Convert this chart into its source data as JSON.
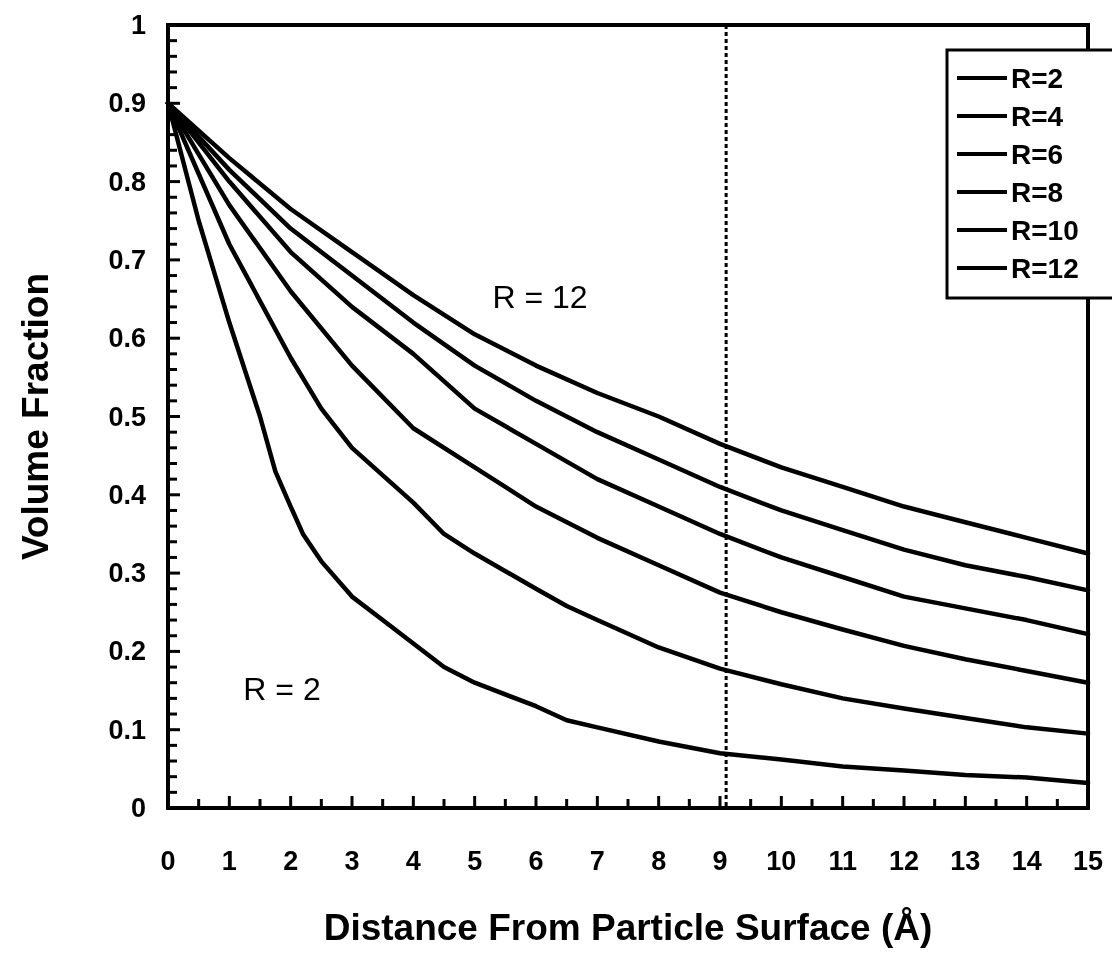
{
  "chart_data": {
    "type": "line",
    "xlabel": "Distance From Particle Surface (Å)",
    "ylabel": "Volume Fraction",
    "xlim": [
      0,
      15
    ],
    "ylim": [
      0,
      1
    ],
    "xticks": [
      0,
      {
        "value": 0.5,
        "label": null
      },
      1,
      {
        "value": 1.5,
        "label": null
      },
      2,
      {
        "value": 2.5,
        "label": null
      },
      3,
      {
        "value": 3.5,
        "label": null
      },
      4,
      {
        "value": 4.5,
        "label": null
      },
      5,
      {
        "value": 5.5,
        "label": null
      },
      6,
      {
        "value": 6.5,
        "label": null
      },
      7,
      {
        "value": 7.5,
        "label": null
      },
      8,
      {
        "value": 8.5,
        "label": null
      },
      9,
      {
        "value": 9.5,
        "label": null
      },
      10,
      {
        "value": 10.5,
        "label": null
      },
      11,
      {
        "value": 11.5,
        "label": null
      },
      12,
      {
        "value": 12.5,
        "label": null
      },
      13,
      {
        "value": 13.5,
        "label": null
      },
      14,
      {
        "value": 14.5,
        "label": null
      },
      15
    ],
    "yticks": [
      0,
      {
        "value": 0.02,
        "label": null
      },
      {
        "value": 0.04,
        "label": null
      },
      {
        "value": 0.06,
        "label": null
      },
      {
        "value": 0.08,
        "label": null
      },
      0.1,
      {
        "value": 0.12,
        "label": null
      },
      {
        "value": 0.14,
        "label": null
      },
      {
        "value": 0.16,
        "label": null
      },
      {
        "value": 0.18,
        "label": null
      },
      0.2,
      {
        "value": 0.22,
        "label": null
      },
      {
        "value": 0.24,
        "label": null
      },
      {
        "value": 0.26,
        "label": null
      },
      {
        "value": 0.28,
        "label": null
      },
      0.3,
      {
        "value": 0.32,
        "label": null
      },
      {
        "value": 0.34,
        "label": null
      },
      {
        "value": 0.36,
        "label": null
      },
      {
        "value": 0.38,
        "label": null
      },
      0.4,
      {
        "value": 0.42,
        "label": null
      },
      {
        "value": 0.44,
        "label": null
      },
      {
        "value": 0.46,
        "label": null
      },
      {
        "value": 0.48,
        "label": null
      },
      0.5,
      {
        "value": 0.52,
        "label": null
      },
      {
        "value": 0.54,
        "label": null
      },
      {
        "value": 0.56,
        "label": null
      },
      {
        "value": 0.58,
        "label": null
      },
      0.6,
      {
        "value": 0.62,
        "label": null
      },
      {
        "value": 0.64,
        "label": null
      },
      {
        "value": 0.66,
        "label": null
      },
      {
        "value": 0.68,
        "label": null
      },
      0.7,
      {
        "value": 0.72,
        "label": null
      },
      {
        "value": 0.74,
        "label": null
      },
      {
        "value": 0.76,
        "label": null
      },
      {
        "value": 0.78,
        "label": null
      },
      0.8,
      {
        "value": 0.82,
        "label": null
      },
      {
        "value": 0.84,
        "label": null
      },
      {
        "value": 0.86,
        "label": null
      },
      {
        "value": 0.88,
        "label": null
      },
      0.9,
      {
        "value": 0.92,
        "label": null
      },
      {
        "value": 0.94,
        "label": null
      },
      {
        "value": 0.96,
        "label": null
      },
      {
        "value": 0.98,
        "label": null
      },
      1
    ],
    "grid": false,
    "legend": "top right",
    "marker": "none",
    "line_style": "solid",
    "ref_lines": [
      {
        "axis": "x",
        "value": 9.1,
        "line_style": "dotted",
        "color": "#000000"
      }
    ],
    "annotations": [
      "R = 12",
      "R = 2"
    ],
    "series": [
      {
        "name": "R=2",
        "color": "#000000",
        "x": [
          0,
          0.5,
          1,
          1.5,
          1.75,
          2,
          2.2,
          2.5,
          3,
          3.5,
          4,
          4.5,
          5,
          6,
          6.5,
          7,
          8,
          9,
          10,
          11,
          12,
          13,
          14,
          15
        ],
        "values": [
          0.9,
          0.75,
          0.62,
          0.5,
          0.43,
          0.385,
          0.35,
          0.315,
          0.27,
          0.24,
          0.21,
          0.18,
          0.16,
          0.13,
          0.112,
          0.103,
          0.085,
          0.07,
          0.062,
          0.053,
          0.048,
          0.042,
          0.039,
          0.032
        ]
      },
      {
        "name": "R=4",
        "color": "#000000",
        "x": [
          0,
          1,
          2,
          2.5,
          3,
          4,
          4.5,
          5,
          6,
          6.5,
          7,
          8,
          9,
          10,
          11,
          12,
          13,
          14,
          15
        ],
        "values": [
          0.9,
          0.72,
          0.575,
          0.51,
          0.46,
          0.39,
          0.35,
          0.325,
          0.28,
          0.258,
          0.24,
          0.205,
          0.178,
          0.158,
          0.14,
          0.127,
          0.115,
          0.103,
          0.095
        ]
      },
      {
        "name": "R=6",
        "color": "#000000",
        "x": [
          0,
          1,
          2,
          3,
          4,
          5,
          6,
          7,
          8,
          9,
          10,
          11,
          12,
          13,
          14,
          15
        ],
        "values": [
          0.9,
          0.77,
          0.66,
          0.565,
          0.485,
          0.435,
          0.385,
          0.345,
          0.31,
          0.275,
          0.25,
          0.228,
          0.207,
          0.19,
          0.175,
          0.16
        ]
      },
      {
        "name": "R=8",
        "color": "#000000",
        "x": [
          0,
          1,
          2,
          3,
          4,
          5,
          6,
          7,
          8,
          9,
          10,
          11,
          12,
          13,
          14,
          15
        ],
        "values": [
          0.9,
          0.8,
          0.71,
          0.64,
          0.58,
          0.51,
          0.465,
          0.42,
          0.385,
          0.35,
          0.32,
          0.295,
          0.27,
          0.255,
          0.24,
          0.222
        ]
      },
      {
        "name": "R=10",
        "color": "#000000",
        "x": [
          0,
          1,
          2,
          3,
          4,
          5,
          6,
          7,
          8,
          9,
          10,
          11,
          12,
          13,
          14,
          15
        ],
        "values": [
          0.9,
          0.815,
          0.74,
          0.68,
          0.62,
          0.565,
          0.52,
          0.48,
          0.445,
          0.41,
          0.38,
          0.355,
          0.33,
          0.31,
          0.295,
          0.278
        ]
      },
      {
        "name": "R=12",
        "color": "#000000",
        "x": [
          0,
          1,
          2,
          3,
          4,
          5,
          6,
          7,
          8,
          9,
          10,
          11,
          12,
          13,
          14,
          15
        ],
        "values": [
          0.9,
          0.83,
          0.765,
          0.71,
          0.655,
          0.605,
          0.565,
          0.53,
          0.5,
          0.465,
          0.435,
          0.41,
          0.385,
          0.365,
          0.345,
          0.325
        ]
      }
    ]
  }
}
